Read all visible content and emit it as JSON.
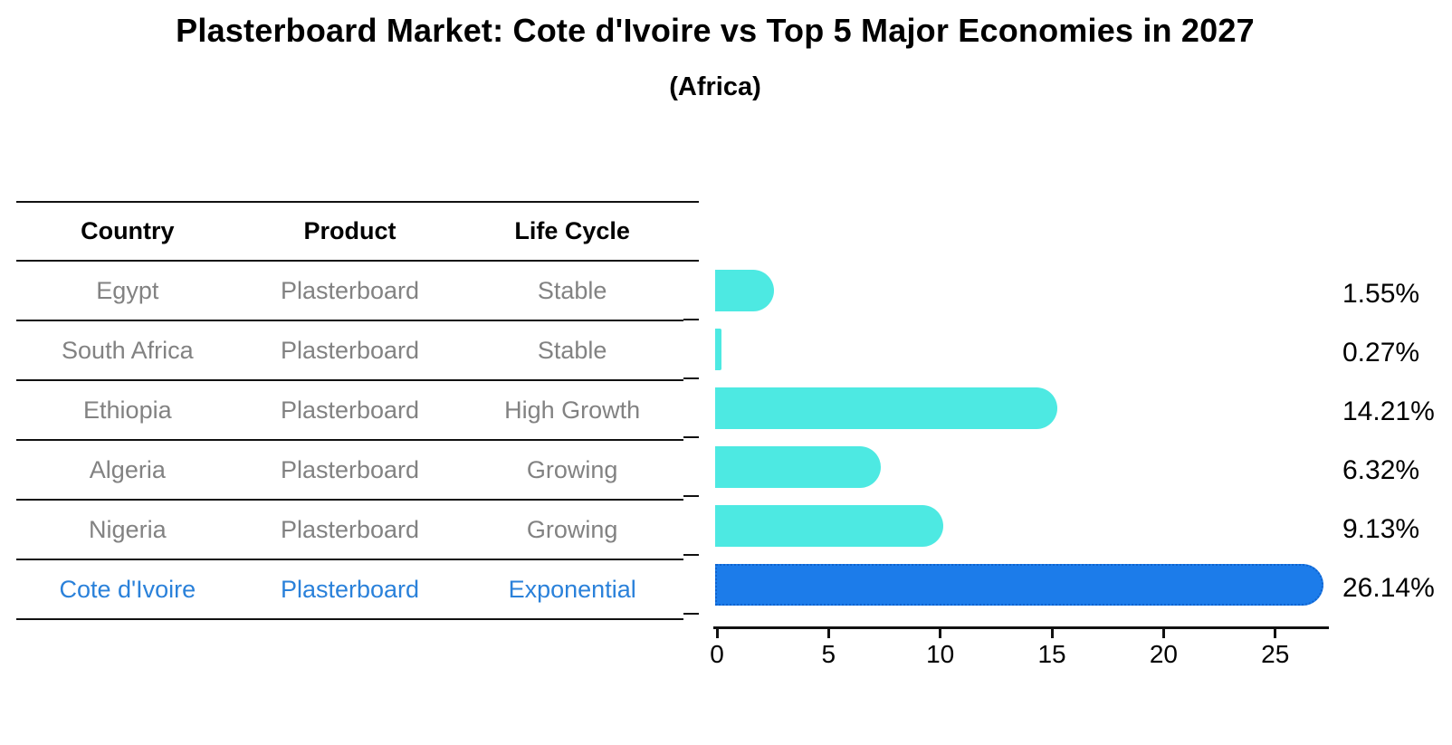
{
  "header": {
    "title": "Plasterboard Market: Cote d'Ivoire vs Top 5 Major Economies in 2027",
    "subtitle": "(Africa)"
  },
  "table": {
    "columns": [
      "Country",
      "Product",
      "Life Cycle"
    ],
    "rows": [
      {
        "country": "Egypt",
        "product": "Plasterboard",
        "life_cycle": "Stable",
        "highlight": false
      },
      {
        "country": "South Africa",
        "product": "Plasterboard",
        "life_cycle": "Stable",
        "highlight": false
      },
      {
        "country": "Ethiopia",
        "product": "Plasterboard",
        "life_cycle": "High Growth",
        "highlight": false
      },
      {
        "country": "Algeria",
        "product": "Plasterboard",
        "life_cycle": "Growing",
        "highlight": false
      },
      {
        "country": "Nigeria",
        "product": "Plasterboard",
        "life_cycle": "Growing",
        "highlight": false
      },
      {
        "country": "Cote d'Ivoire",
        "product": "Plasterboard",
        "life_cycle": "Exponential",
        "highlight": true
      }
    ]
  },
  "chart_data": {
    "type": "bar",
    "orientation": "horizontal",
    "title": "Plasterboard Market: Cote d'Ivoire vs Top 5 Major Economies in 2027",
    "subtitle": "(Africa)",
    "categories": [
      "Egypt",
      "South Africa",
      "Ethiopia",
      "Algeria",
      "Nigeria",
      "Cote d'Ivoire"
    ],
    "values": [
      1.55,
      0.27,
      14.21,
      6.32,
      9.13,
      26.14
    ],
    "labels": [
      "1.55%",
      "0.27%",
      "14.21%",
      "6.32%",
      "9.13%",
      "26.14%"
    ],
    "highlight_index": 5,
    "xlabel": "",
    "ylabel": "",
    "xlim": [
      0,
      27.5
    ],
    "x_ticks": [
      0,
      5,
      10,
      15,
      20,
      25
    ],
    "grid": false,
    "legend": false,
    "colors": {
      "bar_default": "#4de9e2",
      "bar_highlight": "#1c7cea",
      "highlight_edge": "#0f63cf",
      "highlight_text": "#2a81da",
      "row_text": "#828282",
      "axis": "#111111",
      "value_label": "#000000"
    }
  }
}
